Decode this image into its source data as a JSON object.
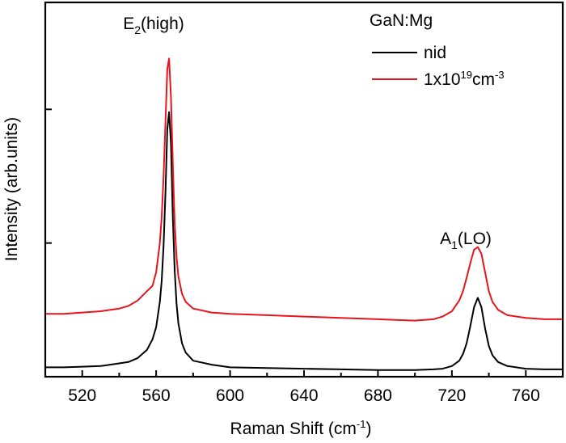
{
  "chart_data": {
    "type": "line",
    "title": "",
    "xlabel": "Raman Shift (cm",
    "xlabel_sup": "-1",
    "xlabel_end": ")",
    "ylabel": "Intensity (arb.units)",
    "xlim": [
      500,
      780
    ],
    "ylim": [
      0,
      2.8
    ],
    "xticks": [
      520,
      560,
      600,
      640,
      680,
      720,
      760
    ],
    "xtick_labels": [
      "520",
      "560",
      "600",
      "640",
      "680",
      "720",
      "760"
    ],
    "xminor_ticks": [
      500,
      540,
      580,
      620,
      660,
      700,
      740,
      780
    ],
    "yticks": [
      1,
      2
    ],
    "ytick_labels_shown": false,
    "grid": false,
    "legend": {
      "placement": "top-right",
      "title": "GaN:Mg",
      "entries": [
        {
          "label": "nid",
          "color": "#000000"
        },
        {
          "label_base": "1x10",
          "label_sup1": "19",
          "label_mid": "cm",
          "label_sup2": "-3",
          "color": "#e8141c"
        }
      ]
    },
    "annotations": [
      {
        "base": "E",
        "sub": "2",
        "rest": "(high)",
        "x": 567,
        "y": 2.65
      },
      {
        "base": "A",
        "sub": "1",
        "rest": "(LO)",
        "x": 734,
        "y": 1.05
      }
    ],
    "x": [
      500,
      510,
      520,
      530,
      540,
      545,
      550,
      555,
      558,
      560,
      562,
      563,
      564,
      565,
      566,
      567,
      568,
      569,
      570,
      571,
      572,
      574,
      576,
      580,
      590,
      600,
      620,
      640,
      660,
      680,
      700,
      710,
      715,
      720,
      724,
      726,
      728,
      730,
      732,
      734,
      736,
      738,
      740,
      742,
      745,
      750,
      760,
      770,
      780
    ],
    "series": [
      {
        "name": "nid",
        "color": "#000000",
        "values": [
          0.07,
          0.07,
          0.075,
          0.08,
          0.1,
          0.11,
          0.14,
          0.2,
          0.28,
          0.37,
          0.56,
          0.72,
          0.98,
          1.37,
          1.85,
          1.98,
          1.75,
          1.2,
          0.8,
          0.55,
          0.4,
          0.25,
          0.18,
          0.12,
          0.09,
          0.07,
          0.065,
          0.06,
          0.055,
          0.05,
          0.05,
          0.055,
          0.06,
          0.08,
          0.12,
          0.17,
          0.25,
          0.38,
          0.52,
          0.59,
          0.52,
          0.36,
          0.23,
          0.16,
          0.11,
          0.08,
          0.06,
          0.055,
          0.055
        ]
      },
      {
        "name": "1x10^19 cm^-3",
        "color": "#e8141c",
        "values": [
          0.47,
          0.47,
          0.48,
          0.49,
          0.51,
          0.53,
          0.57,
          0.64,
          0.68,
          0.78,
          1.0,
          1.2,
          1.5,
          1.9,
          2.3,
          2.38,
          2.1,
          1.6,
          1.15,
          0.9,
          0.75,
          0.62,
          0.56,
          0.51,
          0.48,
          0.47,
          0.46,
          0.45,
          0.44,
          0.43,
          0.42,
          0.43,
          0.45,
          0.49,
          0.57,
          0.64,
          0.74,
          0.85,
          0.95,
          0.97,
          0.92,
          0.78,
          0.64,
          0.56,
          0.5,
          0.46,
          0.44,
          0.43,
          0.43
        ]
      }
    ]
  }
}
